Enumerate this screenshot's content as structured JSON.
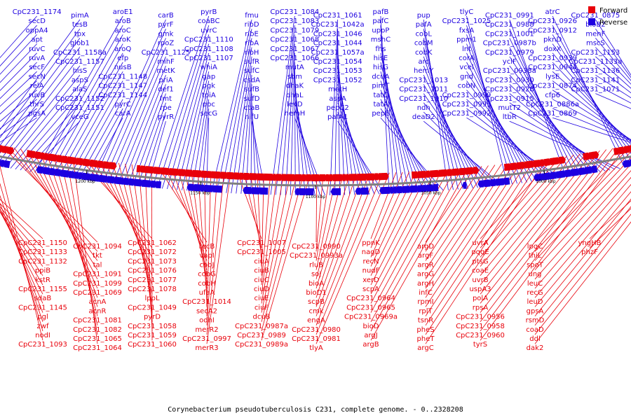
{
  "caption": "Corynebacterium pseudotuberculosis C231, complete genome. - 0..2328208",
  "legend": {
    "forward": {
      "label": "Forward",
      "color": "#e8000a"
    },
    "reverse": {
      "label": "Reverse",
      "color": "#1d00e0"
    }
  },
  "colors": {
    "forward": "#e8000a",
    "reverse": "#1d00e0",
    "backbone": "#7f7f7f"
  },
  "map": {
    "ticks": [
      "950 kbp",
      "1000 kbp",
      "1050 kbp",
      "1100 kbp",
      "1150 kbp",
      "1200 kbp",
      "1250 kbp"
    ],
    "reverse_labels": [
      "CpC231_1174",
      "secD",
      "oppA4",
      "apt",
      "ruvC",
      "ruvA",
      "secF",
      "secN",
      "relA",
      "ruvB",
      "thrS",
      "pgsA",
      "pimA",
      "tesB",
      "tpx",
      "glob1",
      "CpC231_1158a",
      "CpC231_1157",
      "hisS",
      "aspS",
      "alaS",
      "CpC231_1152",
      "CpC231_1151",
      "vceG",
      "aroE1",
      "aroB",
      "aroC",
      "aroK",
      "aroQ",
      "efp",
      "nusB",
      "CpC231_1148",
      "CpC231_1147",
      "CpC231_1144",
      "pyrC",
      "carA",
      "carB",
      "pyrF",
      "gmk",
      "rpoZ",
      "CpC231_1125",
      "mihF",
      "metK",
      "priA",
      "def1",
      "fmt",
      "rpe",
      "pyrR",
      "pyrB",
      "coaBC",
      "uvrC",
      "CpC231_1110",
      "CpC231_1108",
      "CpC231_1107",
      "whiA",
      "gap",
      "pgk",
      "tpiA",
      "ppc",
      "secG",
      "fmu",
      "ribD",
      "ribE",
      "ribA",
      "ribH",
      "sufR",
      "sufC",
      "csdA",
      "sufB",
      "sufD",
      "ctaB",
      "nifU",
      "CpC231_1084",
      "CpC231_1083",
      "CpC231_1079",
      "CpC231_1068",
      "CpC231_1067",
      "CpC231_1066",
      "mutA",
      "sbm",
      "dhaK",
      "dhaL",
      "levD",
      "hemH",
      "CpC231_1061",
      "CpC231_1042a",
      "CpC231_1046",
      "CpC231_1044",
      "CpC231_1057a",
      "CpC231_1054",
      "CpC231_1053",
      "CpC231_1052",
      "metH",
      "aspA",
      "pepC2",
      "pafA1",
      "pafB",
      "pafC",
      "uppP",
      "mshC",
      "fhs",
      "hisE",
      "hisG",
      "dcuA",
      "pimT",
      "tatC",
      "tatA",
      "pepE",
      "pup",
      "pafA",
      "cobL",
      "cobM",
      "cobK",
      "arc",
      "hemY",
      "CpC231_1013",
      "CpC231_1011",
      "CpC231_1010",
      "ndh",
      "deaD2",
      "tlyC",
      "CpC231_1025",
      "fxsA",
      "ppm1",
      "lnt",
      "corA",
      "vcel",
      "gnd",
      "cobN",
      "CpC231_0999",
      "CpC231_0993",
      "CpC231_0992",
      "CpC231_0991",
      "CpC231_0988",
      "CpC231_1001",
      "CpC231_0987b",
      "CpC231_0979",
      "yclF",
      "CpC231_0938a",
      "CpC231_0930",
      "CpC231_0928",
      "CpC231_0915",
      "mutT2",
      "ltbR",
      "atrC",
      "CpC231_0926",
      "CpC231_0912",
      "pknD",
      "doxX",
      "CpC231_0939",
      "CpC231_0944",
      "lysE",
      "CpC231_0874",
      "cfp6",
      "CpC231_0886a",
      "CpC231_0869",
      "CpC231_0875",
      "bioB2",
      "menF",
      "mscS",
      "CpC231_1153",
      "CpC231_1133a",
      "CpC231_1136",
      "CpC231_1141",
      "CpC231_1071"
    ],
    "forward_labels": [
      "CpC231_1150",
      "CpC231_1133",
      "CpC231_1132",
      "ppiB",
      "kstR",
      "CpC231_1155",
      "sdaB",
      "CpC231_1145",
      "pgl",
      "zwf",
      "nodI",
      "CpC231_1093",
      "CpC231_1094",
      "tkt",
      "tal",
      "CpC231_1091",
      "CpC231_1099",
      "CpC231_1069",
      "acnA",
      "acnR",
      "CpC231_1081",
      "CpC231_1082",
      "CpC231_1065",
      "CpC231_1064",
      "CpC231_1062",
      "CpC231_1072",
      "CpC231_1073",
      "CpC231_1076",
      "CpC231_1077",
      "CpC231_1078",
      "lppL",
      "CpC231_1049",
      "pyrD",
      "CpC231_1058",
      "CpC231_1059",
      "CpC231_1060",
      "recB",
      "vapI",
      "cobJ",
      "cobG",
      "cobH",
      "ufaA",
      "CpC231_1014",
      "secA2",
      "odhI",
      "merR2",
      "CpC231_0997",
      "merR3",
      "CpC231_1007",
      "CpC231_1005",
      "ciuA",
      "ciuB",
      "ciuC",
      "ciuD",
      "ciuE",
      "ciuF",
      "dcuB",
      "CpC231_0987a",
      "CpC231_0989",
      "CpC231_0989a",
      "CpC231_0990",
      "CpC231_0993a",
      "rluB",
      "soj",
      "bioA",
      "bioD1",
      "scpB",
      "cmk",
      "engA",
      "CpC231_0980",
      "CpC231_0981",
      "tlyA",
      "ppnK",
      "nagD",
      "recN",
      "nudF",
      "xerD",
      "scpA",
      "CpC231_0964",
      "CpC231_0965",
      "CpC231_0969a",
      "bioD",
      "argJ",
      "argB",
      "argD",
      "argF",
      "argR",
      "argG",
      "argH",
      "infC",
      "rpmI",
      "rplT",
      "tsnR",
      "pheS",
      "pheT",
      "argC",
      "uvrA",
      "pqqE",
      "ptsG",
      "coaE",
      "uvrB",
      "uspA3",
      "polA",
      "rpsA",
      "CpC231_0956",
      "CpC231_0958",
      "CpC231_0960",
      "tyrS",
      "lpqC",
      "thiL",
      "spoT",
      "ung",
      "leuC",
      "recG",
      "leuD",
      "gpsA",
      "rsmD",
      "coaD",
      "ddl",
      "dak2",
      "yngHB",
      "phzF"
    ]
  }
}
